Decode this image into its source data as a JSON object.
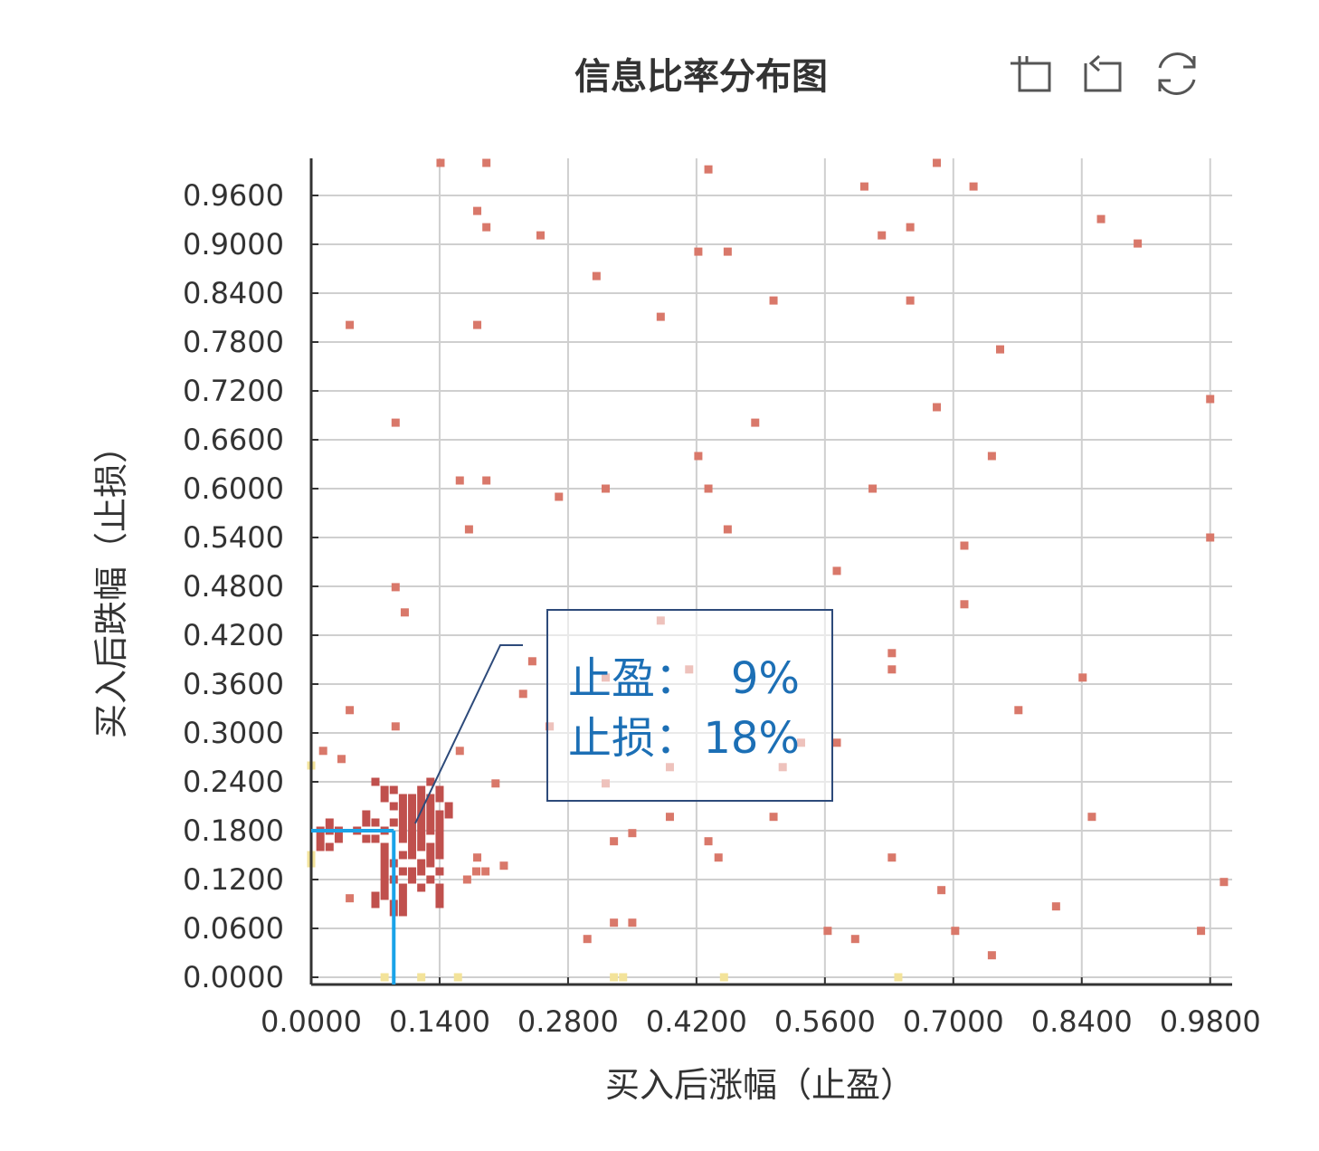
{
  "chart_data": {
    "type": "scatter",
    "title": "信息比率分布图",
    "x_label": "买入后涨幅（止盈）",
    "y_label": "买入后跌幅（止损）",
    "xlim": [
      0,
      1.0
    ],
    "ylim": [
      0,
      1.0
    ],
    "xticks": [
      {
        "value": 0,
        "label": "0.0000"
      },
      {
        "value": 0.14,
        "label": "0.1400"
      },
      {
        "value": 0.28,
        "label": "0.2800"
      },
      {
        "value": 0.42,
        "label": "0.4200"
      },
      {
        "value": 0.56,
        "label": "0.5600"
      },
      {
        "value": 0.7,
        "label": "0.7000"
      },
      {
        "value": 0.84,
        "label": "0.8400"
      },
      {
        "value": 0.98,
        "label": "0.9800"
      }
    ],
    "yticks": [
      {
        "value": 0,
        "label": "0.0000"
      },
      {
        "value": 0.06,
        "label": "0.0600"
      },
      {
        "value": 0.12,
        "label": "0.1200"
      },
      {
        "value": 0.18,
        "label": "0.1800"
      },
      {
        "value": 0.24,
        "label": "0.2400"
      },
      {
        "value": 0.3,
        "label": "0.3000"
      },
      {
        "value": 0.36,
        "label": "0.3600"
      },
      {
        "value": 0.42,
        "label": "0.4200"
      },
      {
        "value": 0.48,
        "label": "0.4800"
      },
      {
        "value": 0.54,
        "label": "0.5400"
      },
      {
        "value": 0.6,
        "label": "0.6000"
      },
      {
        "value": 0.66,
        "label": "0.6600"
      },
      {
        "value": 0.72,
        "label": "0.7200"
      },
      {
        "value": 0.78,
        "label": "0.7800"
      },
      {
        "value": 0.84,
        "label": "0.8400"
      },
      {
        "value": 0.9,
        "label": "0.9000"
      },
      {
        "value": 0.96,
        "label": "0.9600"
      }
    ],
    "grid": true,
    "series": [
      {
        "color": "#d9786a",
        "x": [
          0.141,
          0.191,
          0.433,
          0.682,
          0.603,
          0.722,
          0.181,
          0.191,
          0.25,
          0.422,
          0.454,
          0.622,
          0.653,
          0.861,
          0.901,
          0.311,
          0.504,
          0.653,
          0.042,
          0.181,
          0.381,
          0.751,
          0.98,
          0.682,
          0.092,
          0.484,
          0.422,
          0.742,
          0.162,
          0.191,
          0.27,
          0.321,
          0.433,
          0.612,
          0.172,
          0.454,
          0.98,
          0.712,
          0.573,
          0.092,
          0.102,
          0.712,
          0.381,
          0.241,
          0.633,
          0.412,
          0.633,
          0.321,
          0.841,
          0.231,
          0.042,
          0.771,
          0.092,
          0.26,
          0.013,
          0.162,
          0.534,
          0.573,
          0.033,
          0.391,
          0.514,
          0.321,
          0.201,
          0.391,
          0.504,
          0.851,
          0.35,
          0.33,
          0.433,
          0.444,
          0.633,
          0.21,
          0.181,
          0.995,
          0.687,
          0.812,
          0.042,
          0.33,
          0.35,
          0.563,
          0.702,
          0.97,
          0.301,
          0.593,
          0.742,
          0.18,
          0.19,
          0.17
        ],
        "y": [
          1.0,
          1.0,
          0.992,
          1.0,
          0.971,
          0.971,
          0.941,
          0.921,
          0.911,
          0.891,
          0.891,
          0.911,
          0.921,
          0.931,
          0.901,
          0.861,
          0.831,
          0.831,
          0.801,
          0.801,
          0.811,
          0.771,
          0.71,
          0.7,
          0.681,
          0.681,
          0.64,
          0.64,
          0.61,
          0.61,
          0.59,
          0.6,
          0.6,
          0.6,
          0.55,
          0.55,
          0.54,
          0.53,
          0.499,
          0.479,
          0.448,
          0.458,
          0.438,
          0.388,
          0.398,
          0.378,
          0.378,
          0.368,
          0.368,
          0.348,
          0.328,
          0.328,
          0.308,
          0.308,
          0.278,
          0.278,
          0.288,
          0.288,
          0.268,
          0.258,
          0.258,
          0.238,
          0.238,
          0.197,
          0.197,
          0.197,
          0.177,
          0.167,
          0.167,
          0.147,
          0.147,
          0.137,
          0.147,
          0.117,
          0.107,
          0.087,
          0.097,
          0.067,
          0.067,
          0.057,
          0.057,
          0.057,
          0.047,
          0.047,
          0.027,
          0.13,
          0.13,
          0.12
        ]
      },
      {
        "color": "#c0504d",
        "x": [
          0.07,
          0.13,
          0.08,
          0.09,
          0.12,
          0.14,
          0.08,
          0.1,
          0.11,
          0.12,
          0.13,
          0.14,
          0.09,
          0.1,
          0.11,
          0.12,
          0.13,
          0.15,
          0.06,
          0.1,
          0.11,
          0.12,
          0.13,
          0.14,
          0.15,
          0.02,
          0.06,
          0.07,
          0.09,
          0.1,
          0.11,
          0.12,
          0.13,
          0.14,
          0.01,
          0.02,
          0.03,
          0.05,
          0.08,
          0.1,
          0.11,
          0.12,
          0.13,
          0.14,
          0.01,
          0.03,
          0.06,
          0.07,
          0.1,
          0.11,
          0.12,
          0.14,
          0.01,
          0.02,
          0.08,
          0.11,
          0.12,
          0.13,
          0.14,
          0.08,
          0.1,
          0.11,
          0.13,
          0.14,
          0.08,
          0.09,
          0.12,
          0.13,
          0.08,
          0.1,
          0.11,
          0.12,
          0.14,
          0.08,
          0.09,
          0.11,
          0.13,
          0.08,
          0.1,
          0.12,
          0.14,
          0.07,
          0.08,
          0.1,
          0.14,
          0.07,
          0.09,
          0.1,
          0.14,
          0.09,
          0.1
        ],
        "y": [
          0.24,
          0.24,
          0.23,
          0.23,
          0.23,
          0.23,
          0.22,
          0.22,
          0.22,
          0.22,
          0.22,
          0.22,
          0.21,
          0.21,
          0.21,
          0.21,
          0.21,
          0.21,
          0.2,
          0.2,
          0.2,
          0.2,
          0.2,
          0.2,
          0.2,
          0.19,
          0.19,
          0.19,
          0.19,
          0.19,
          0.19,
          0.19,
          0.19,
          0.19,
          0.18,
          0.18,
          0.18,
          0.18,
          0.18,
          0.18,
          0.18,
          0.18,
          0.18,
          0.18,
          0.17,
          0.17,
          0.17,
          0.17,
          0.17,
          0.17,
          0.17,
          0.17,
          0.16,
          0.16,
          0.16,
          0.16,
          0.16,
          0.16,
          0.16,
          0.15,
          0.15,
          0.15,
          0.15,
          0.15,
          0.14,
          0.14,
          0.14,
          0.14,
          0.13,
          0.13,
          0.13,
          0.13,
          0.13,
          0.12,
          0.12,
          0.12,
          0.12,
          0.11,
          0.11,
          0.11,
          0.11,
          0.1,
          0.1,
          0.1,
          0.1,
          0.09,
          0.09,
          0.09,
          0.09,
          0.08,
          0.08
        ]
      },
      {
        "color": "#f3e39a",
        "x": [
          0.08,
          0.12,
          0.16,
          0.33,
          0.34,
          0.45,
          0.64,
          0,
          0,
          0
        ],
        "y": [
          0,
          0,
          0,
          0,
          0,
          0,
          0,
          0.26,
          0.15,
          0.14
        ]
      }
    ],
    "marker": {
      "x": 0.09,
      "y": 0.18,
      "color": "#1aa3e8"
    },
    "annotation": {
      "lines": [
        [
          "止盈：",
          "9%"
        ],
        [
          "止损：",
          "18%"
        ]
      ],
      "color": "#1c6fb5"
    }
  }
}
